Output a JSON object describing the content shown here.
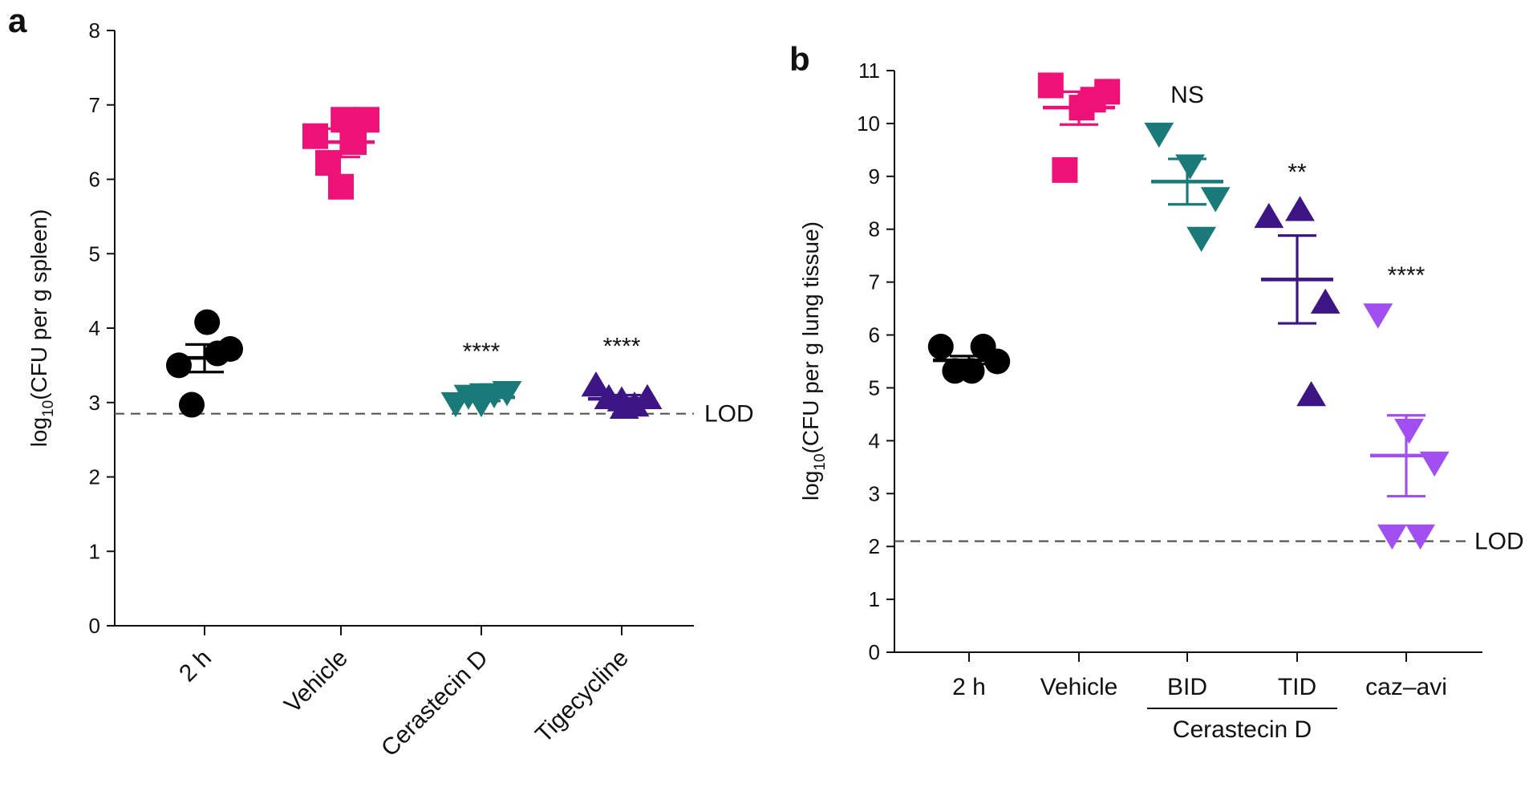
{
  "chart_data": [
    {
      "type": "scatter",
      "panel_label": "a",
      "ylabel_main": "log",
      "ylabel_sub": "10",
      "ylabel_rest": "(CFU per g spleen)",
      "ylim": [
        0,
        8
      ],
      "yticks": [
        "0",
        "1",
        "2",
        "3",
        "4",
        "5",
        "6",
        "7",
        "8"
      ],
      "lod": {
        "label": "LOD",
        "value": 2.85
      },
      "groups": [
        {
          "label": "2 h",
          "color": "#000000",
          "marker": "circle",
          "mean": 3.6,
          "sem": [
            3.41,
            3.78
          ],
          "sig": "",
          "points": [
            3.5,
            4.08,
            3.72,
            3.66,
            2.97
          ]
        },
        {
          "label": "Vehicle",
          "color": "#ee1177",
          "marker": "square",
          "mean": 6.5,
          "sem": [
            6.3,
            6.68
          ],
          "sig": "",
          "points": [
            6.58,
            6.8,
            6.8,
            6.5,
            6.22,
            5.9
          ]
        },
        {
          "label": "Cerastecin D",
          "color": "#1a7a7a",
          "marker": "triangle-down",
          "mean": 3.07,
          "sem": [
            3.02,
            3.14
          ],
          "sig": "****",
          "points": [
            3.0,
            3.12,
            3.15,
            3.12,
            3.1,
            3.0
          ]
        },
        {
          "label": "Tigecycline",
          "color": "#3d1585",
          "marker": "triangle-up",
          "mean": 3.05,
          "sem": [
            2.98,
            3.1
          ],
          "sig": "****",
          "points": [
            3.22,
            2.92,
            3.05,
            2.95,
            3.05,
            3.02
          ]
        }
      ]
    },
    {
      "type": "scatter",
      "panel_label": "b",
      "ylabel_main": "log",
      "ylabel_sub": "10",
      "ylabel_rest": "(CFU per g lung tissue)",
      "ylim": [
        0,
        11
      ],
      "yticks": [
        "0",
        "1",
        "2",
        "3",
        "4",
        "5",
        "6",
        "7",
        "8",
        "9",
        "10",
        "11"
      ],
      "lod": {
        "label": "LOD",
        "value": 2.1
      },
      "group_bracket": {
        "label": "Cerastecin D",
        "spans": [
          "BID",
          "TID"
        ]
      },
      "groups": [
        {
          "label": "2 h",
          "color": "#000000",
          "marker": "circle",
          "mean": 5.52,
          "sem": [
            5.45,
            5.6
          ],
          "sig": "",
          "points": [
            5.78,
            5.32,
            5.5,
            5.78,
            5.32
          ]
        },
        {
          "label": "Vehicle",
          "color": "#ee1177",
          "marker": "square",
          "mean": 10.3,
          "sem": [
            9.98,
            10.6
          ],
          "sig": "",
          "points": [
            10.72,
            10.3,
            10.6,
            10.45,
            9.12
          ]
        },
        {
          "label": "BID",
          "color": "#1a7a7a",
          "marker": "triangle-down",
          "mean": 8.9,
          "sem": [
            8.47,
            9.33
          ],
          "sig": "NS",
          "points": [
            9.82,
            9.22,
            8.6,
            7.85
          ]
        },
        {
          "label": "TID",
          "color": "#3d1585",
          "marker": "triangle-up",
          "mean": 7.05,
          "sem": [
            6.22,
            7.88
          ],
          "sig": "**",
          "points": [
            8.22,
            8.35,
            6.6,
            4.85
          ]
        },
        {
          "label": "caz–avi",
          "color": "#a24ff2",
          "marker": "triangle-down",
          "mean": 3.72,
          "sem": [
            2.95,
            4.48
          ],
          "sig": "****",
          "points": [
            6.4,
            4.22,
            3.6,
            2.22,
            2.22
          ]
        }
      ]
    }
  ]
}
